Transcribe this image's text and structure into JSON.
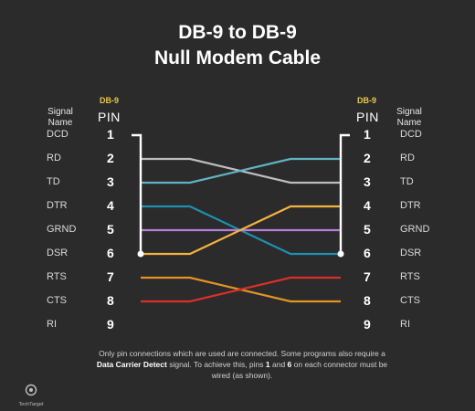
{
  "title": {
    "line1": "DB-9 to DB-9",
    "line2": "Null Modem Cable"
  },
  "left_header": {
    "signal": "Signal",
    "name": "Name",
    "connector": "DB-9",
    "pin": "PIN"
  },
  "right_header": {
    "signal": "Signal",
    "name": "Name",
    "connector": "DB-9",
    "pin": "PIN"
  },
  "signals": [
    "DCD",
    "RD",
    "TD",
    "DTR",
    "GRND",
    "DSR",
    "RTS",
    "CTS",
    "RI"
  ],
  "pins": [
    "1",
    "2",
    "3",
    "4",
    "5",
    "6",
    "7",
    "8",
    "9"
  ],
  "wires": [
    {
      "from": 2,
      "to": 3,
      "color": "#bdbdbd"
    },
    {
      "from": 3,
      "to": 2,
      "color": "#5fb3c4"
    },
    {
      "from": 4,
      "to": 6,
      "color": "#1f8fb0"
    },
    {
      "from": 5,
      "to": 5,
      "color": "#b77ed9"
    },
    {
      "from": 6,
      "to": 4,
      "color": "#f5b240"
    },
    {
      "from": 7,
      "to": 8,
      "color": "#e39421"
    },
    {
      "from": 8,
      "to": 7,
      "color": "#d9302a"
    }
  ],
  "jumper": {
    "pins": [
      1,
      6
    ],
    "color": "#ffffff"
  },
  "footnote": {
    "part1": "Only pin connections which are used are connected. Some programs also require a ",
    "strong1": "Data Carrier Detect",
    "part2": " signal. To achieve this, pins ",
    "strong2": "1",
    "part3": " and ",
    "strong3": "6",
    "part4": " on each connector must be wired (as shown)."
  },
  "logo": {
    "text": "TechTarget"
  }
}
